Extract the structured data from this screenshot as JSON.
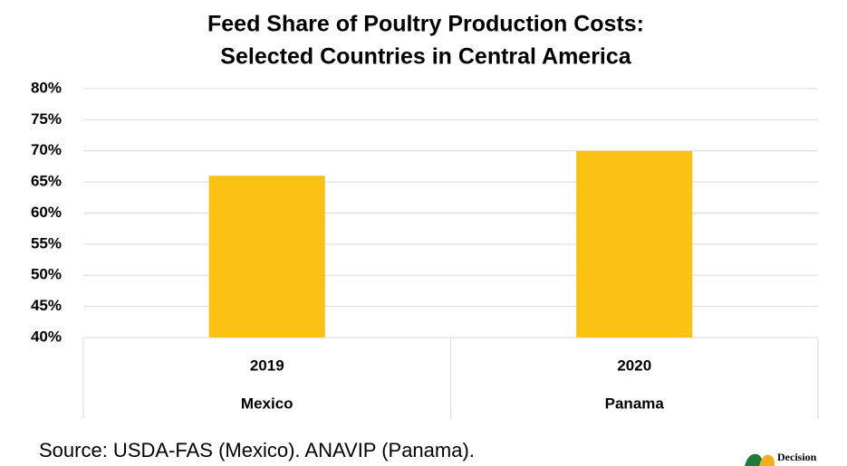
{
  "chart_data": {
    "type": "bar",
    "title": [
      "Feed Share of Poultry Production Costs:",
      "Selected Countries in Central America"
    ],
    "categories": [
      "2019",
      "2020"
    ],
    "groups": [
      "Mexico",
      "Panama"
    ],
    "values": [
      66,
      70
    ],
    "color": "#fbc115",
    "ylim": [
      40,
      80
    ],
    "yticks": [
      {
        "value": 40,
        "label": "40%"
      },
      {
        "value": 45,
        "label": "45%"
      },
      {
        "value": 50,
        "label": "50%"
      },
      {
        "value": 55,
        "label": "55%"
      },
      {
        "value": 60,
        "label": "60%"
      },
      {
        "value": 65,
        "label": "65%"
      },
      {
        "value": 70,
        "label": "70%"
      },
      {
        "value": 75,
        "label": "75%"
      },
      {
        "value": 80,
        "label": "80%"
      }
    ],
    "grid": true,
    "source": "Source: USDA-FAS (Mexico). ANAVIP (Panama).",
    "logo_text": "Decision"
  }
}
